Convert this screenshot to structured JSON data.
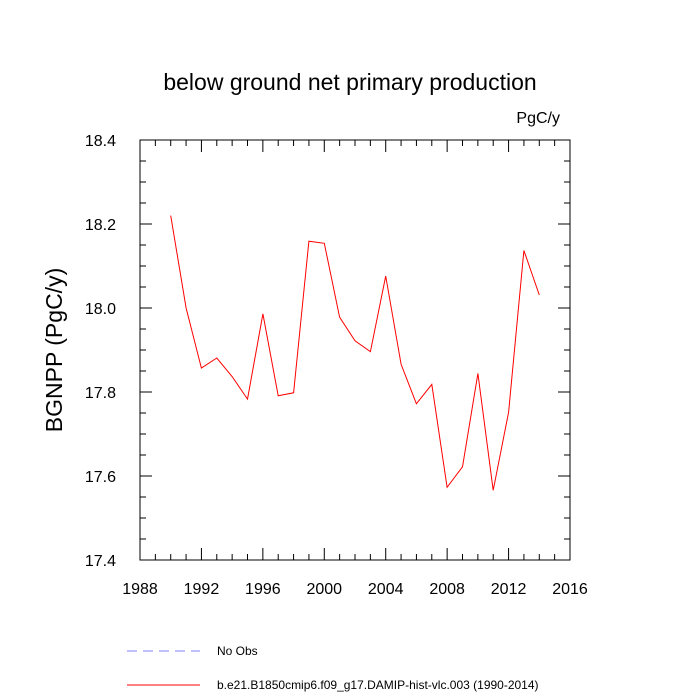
{
  "chart_data": {
    "type": "line",
    "title": "below ground net primary production",
    "unit": "PgC/y",
    "ylabel": "BGNPP  (PgC/y)",
    "xlabel": "",
    "xlim": [
      1988,
      2016
    ],
    "ylim": [
      17.4,
      18.4
    ],
    "xticks": [
      "1988",
      "1992",
      "1996",
      "2000",
      "2004",
      "2008",
      "2012",
      "2016"
    ],
    "yticks": [
      "17.4",
      "17.6",
      "17.8",
      "18.0",
      "18.2",
      "18.4"
    ],
    "grid": false,
    "series": [
      {
        "name": "b.e21.B1850cmip6.f09_g17.DAMIP-hist-vlc.003 (1990-2014)",
        "color": "#ff0000",
        "x": [
          1990,
          1991,
          1992,
          1993,
          1994,
          1995,
          1996,
          1997,
          1998,
          1999,
          2000,
          2001,
          2002,
          2003,
          2004,
          2005,
          2006,
          2007,
          2008,
          2009,
          2010,
          2011,
          2012,
          2013,
          2014
        ],
        "y": [
          18.22,
          18.0,
          17.857,
          17.881,
          17.837,
          17.783,
          17.986,
          17.791,
          17.798,
          18.159,
          18.154,
          17.978,
          17.922,
          17.896,
          18.076,
          17.866,
          17.772,
          17.818,
          17.573,
          17.622,
          17.844,
          17.566,
          17.752,
          18.137,
          18.031
        ]
      }
    ],
    "legend": [
      {
        "label": "No Obs",
        "color": "#8080ff",
        "style": "dashed"
      },
      {
        "label": "b.e21.B1850cmip6.f09_g17.DAMIP-hist-vlc.003 (1990-2014)",
        "color": "#ff0000",
        "style": "solid"
      }
    ],
    "legend_position": "bottom"
  }
}
